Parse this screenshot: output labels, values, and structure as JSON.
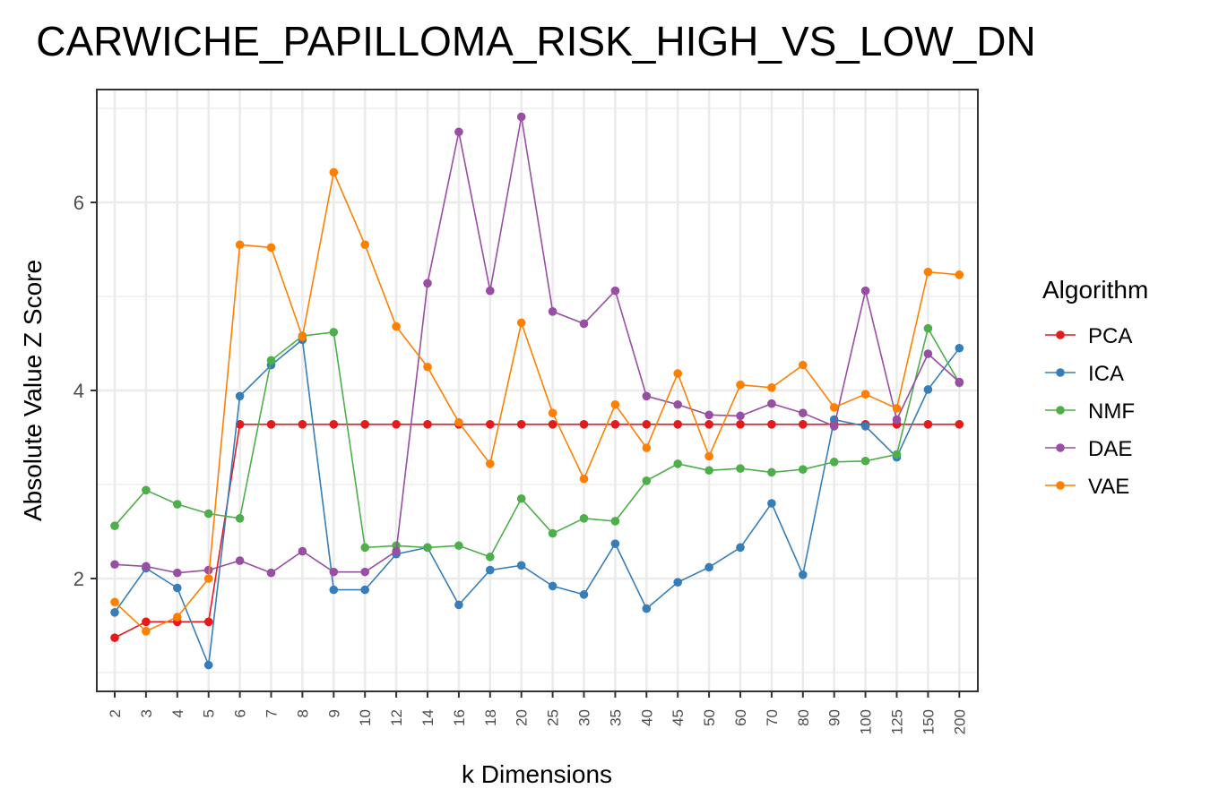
{
  "chart_data": {
    "type": "line",
    "title": "CARWICHE_PAPILLOMA_RISK_HIGH_VS_LOW_DN",
    "xlabel": "k Dimensions",
    "ylabel": "Absolute Value Z Score",
    "categories": [
      "2",
      "3",
      "4",
      "5",
      "6",
      "7",
      "8",
      "9",
      "10",
      "12",
      "14",
      "16",
      "18",
      "20",
      "25",
      "30",
      "35",
      "40",
      "45",
      "50",
      "60",
      "70",
      "80",
      "90",
      "100",
      "125",
      "150",
      "200"
    ],
    "y_ticks": [
      2,
      4,
      6
    ],
    "ylim": [
      0.8,
      7.2
    ],
    "grid": true,
    "legend": {
      "title": "Algorithm",
      "position": "right"
    },
    "series": [
      {
        "name": "PCA",
        "color": "#e41a1c",
        "values": [
          1.37,
          1.54,
          1.54,
          1.54,
          3.64,
          3.64,
          3.64,
          3.64,
          3.64,
          3.64,
          3.64,
          3.64,
          3.64,
          3.64,
          3.64,
          3.64,
          3.64,
          3.64,
          3.64,
          3.64,
          3.64,
          3.64,
          3.64,
          3.64,
          3.64,
          3.64,
          3.64,
          3.64
        ]
      },
      {
        "name": "ICA",
        "color": "#377eb8",
        "values": [
          1.64,
          2.11,
          1.9,
          1.08,
          3.94,
          4.27,
          4.54,
          1.88,
          1.88,
          2.26,
          2.33,
          1.72,
          2.09,
          2.14,
          1.92,
          1.83,
          2.37,
          1.68,
          1.96,
          2.12,
          2.33,
          2.8,
          2.04,
          3.69,
          3.62,
          3.29,
          4.01,
          4.45
        ]
      },
      {
        "name": "NMF",
        "color": "#4daf4a",
        "values": [
          2.56,
          2.94,
          2.79,
          2.69,
          2.64,
          4.32,
          4.58,
          4.62,
          2.33,
          2.35,
          2.33,
          2.35,
          2.23,
          2.85,
          2.48,
          2.64,
          2.61,
          3.04,
          3.22,
          3.15,
          3.17,
          3.13,
          3.16,
          3.24,
          3.25,
          3.32,
          4.66,
          4.08
        ]
      },
      {
        "name": "DAE",
        "color": "#984ea3",
        "values": [
          2.15,
          2.13,
          2.06,
          2.09,
          2.19,
          2.06,
          2.29,
          2.07,
          2.07,
          2.29,
          5.14,
          6.75,
          5.06,
          6.91,
          4.84,
          4.71,
          5.06,
          3.94,
          3.85,
          3.74,
          3.73,
          3.86,
          3.76,
          3.62,
          5.06,
          3.69,
          4.39,
          4.09
        ]
      },
      {
        "name": "VAE",
        "color": "#ff7f00",
        "values": [
          1.75,
          1.44,
          1.59,
          2.0,
          5.55,
          5.52,
          4.57,
          6.32,
          5.55,
          4.68,
          4.25,
          3.66,
          3.22,
          4.72,
          3.76,
          3.06,
          3.85,
          3.39,
          4.18,
          3.3,
          4.06,
          4.03,
          4.27,
          3.82,
          3.96,
          3.81,
          5.26,
          5.23
        ]
      }
    ]
  }
}
